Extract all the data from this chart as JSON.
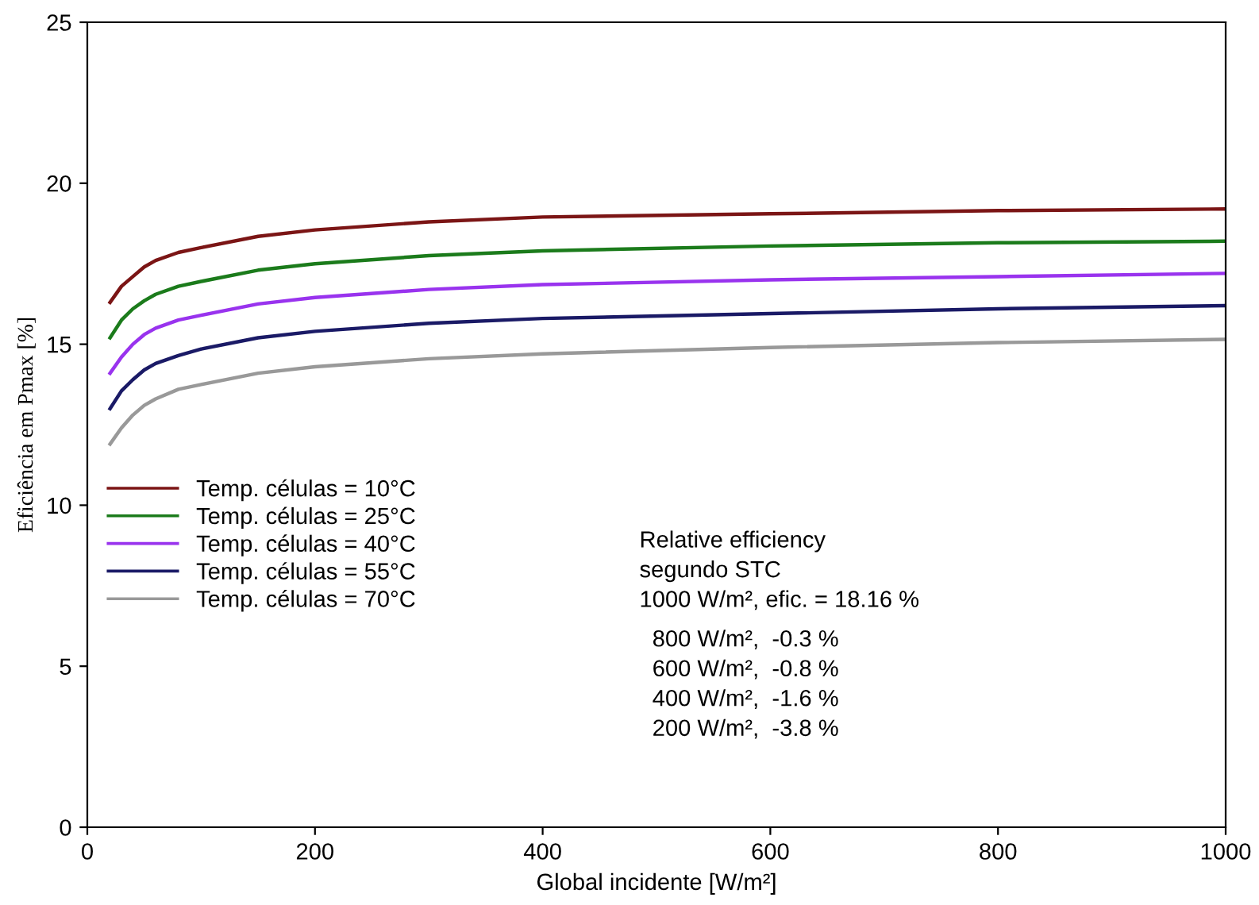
{
  "chart_data": {
    "type": "line",
    "xlabel": "Global incidente [W/m²]",
    "ylabel": "Eficiência em Pmax [%]",
    "xlim": [
      0,
      1000
    ],
    "ylim": [
      0,
      25
    ],
    "xticks": [
      0,
      200,
      400,
      600,
      800,
      1000
    ],
    "yticks": [
      0,
      5,
      10,
      15,
      20,
      25
    ],
    "grid": false,
    "legend": "left",
    "marker": "none",
    "line_style": "solid",
    "x": [
      20,
      30,
      40,
      50,
      60,
      80,
      100,
      150,
      200,
      300,
      400,
      600,
      800,
      1000
    ],
    "series": [
      {
        "name": "Temp. células = 10°C",
        "color": "#7b1515",
        "values": [
          16.3,
          16.8,
          17.1,
          17.4,
          17.6,
          17.85,
          18.0,
          18.35,
          18.55,
          18.8,
          18.95,
          19.05,
          19.15,
          19.2
        ]
      },
      {
        "name": "Temp. células = 25°C",
        "color": "#1b7b1b",
        "values": [
          15.2,
          15.75,
          16.1,
          16.35,
          16.55,
          16.8,
          16.95,
          17.3,
          17.5,
          17.75,
          17.9,
          18.05,
          18.15,
          18.2
        ]
      },
      {
        "name": "Temp. células = 40°C",
        "color": "#9933ee",
        "values": [
          14.1,
          14.6,
          15.0,
          15.3,
          15.5,
          15.75,
          15.9,
          16.25,
          16.45,
          16.7,
          16.85,
          17.0,
          17.1,
          17.2
        ]
      },
      {
        "name": "Temp. células = 55°C",
        "color": "#1a1a66",
        "values": [
          13.0,
          13.55,
          13.9,
          14.2,
          14.4,
          14.65,
          14.85,
          15.2,
          15.4,
          15.65,
          15.8,
          15.95,
          16.1,
          16.2
        ]
      },
      {
        "name": "Temp. células = 70°C",
        "color": "#999999",
        "values": [
          11.9,
          12.4,
          12.8,
          13.1,
          13.3,
          13.6,
          13.75,
          14.1,
          14.3,
          14.55,
          14.7,
          14.9,
          15.05,
          15.15
        ]
      }
    ],
    "annotations": [
      "Relative efficiency",
      "segundo STC",
      "1000 W/m², efic. = 18.16 %",
      "  800 W/m²,  -0.3 %",
      "  600 W/m²,  -0.8 %",
      "  400 W/m²,  -1.6 %",
      "  200 W/m²,  -3.8 %"
    ]
  }
}
